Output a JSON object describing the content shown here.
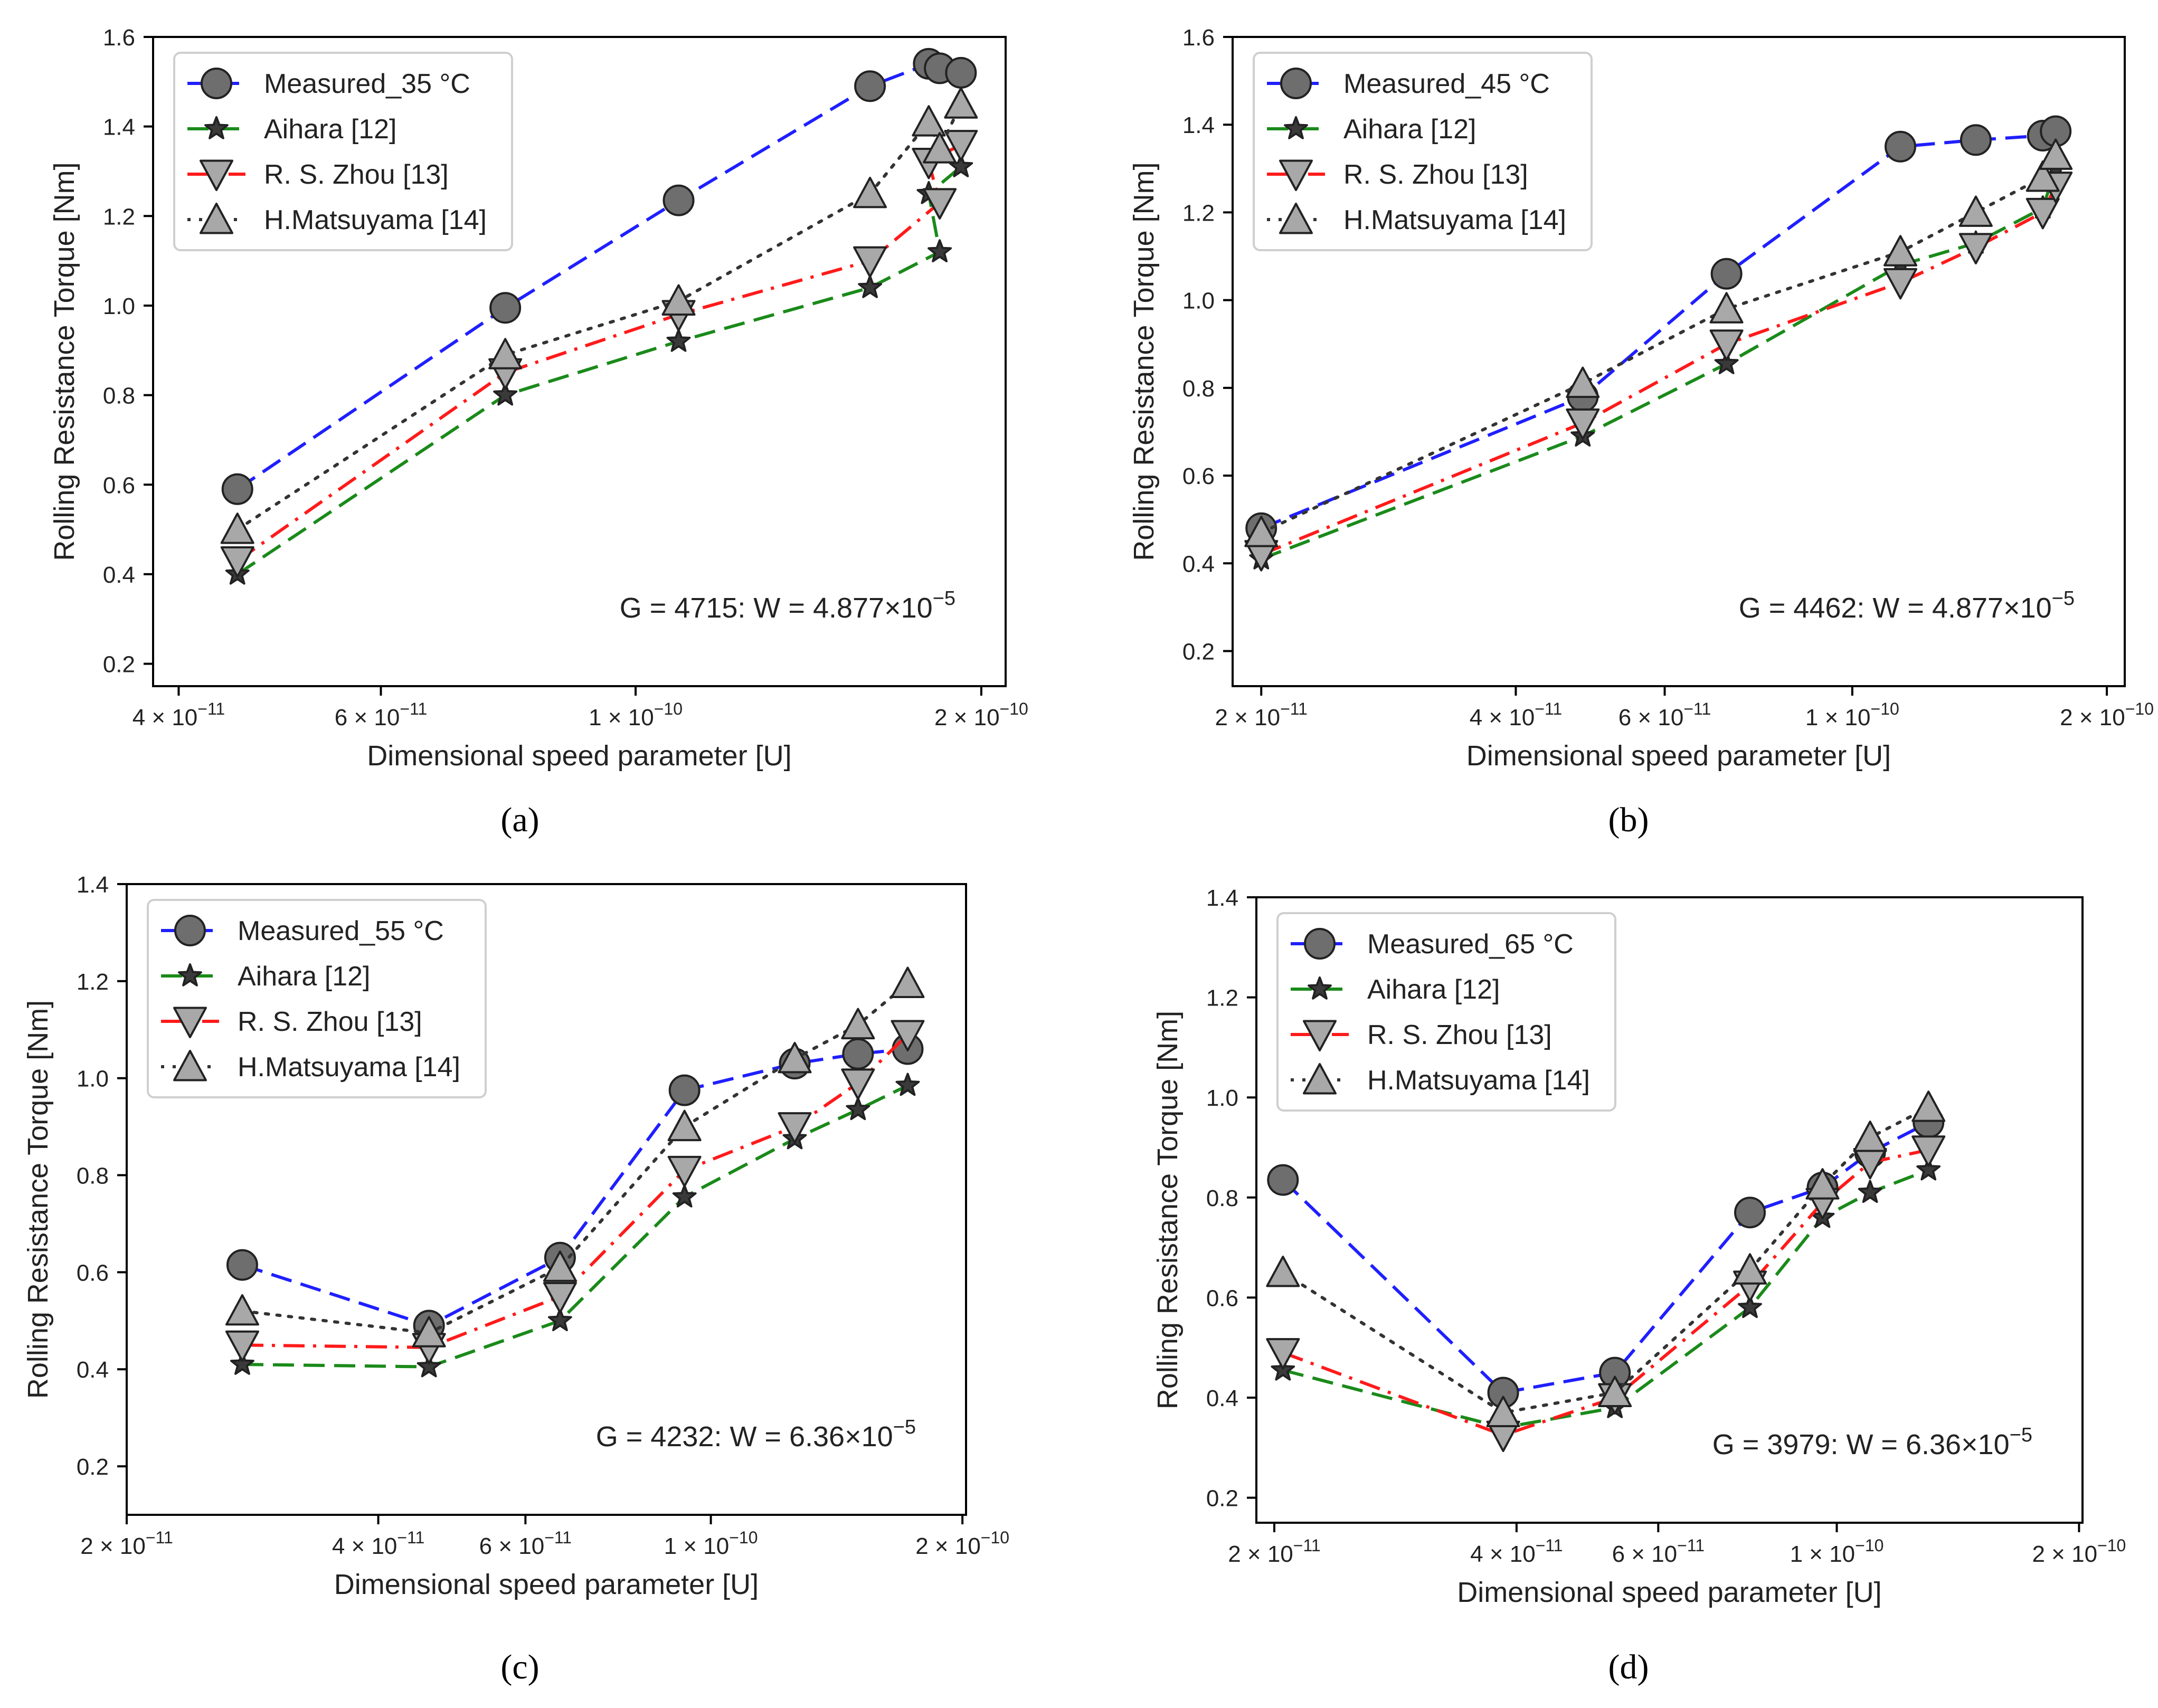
{
  "figure": {
    "panel_captions": [
      "(a)",
      "(b)",
      "(c)",
      "(d)"
    ]
  },
  "series_styles": [
    {
      "name": "Measured",
      "color": "#1f1fff",
      "dash": "dashed",
      "marker": "circle"
    },
    {
      "name": "Aihara [12]",
      "color": "#1a8a1a",
      "dash": "dashed",
      "marker": "star"
    },
    {
      "name": "R. S. Zhou [13]",
      "color": "#ff1a1a",
      "dash": "dashdot",
      "marker": "triangle-down"
    },
    {
      "name": "H.Matsuyama [14]",
      "color": "#333333",
      "dash": "dotted",
      "marker": "triangle-up"
    }
  ],
  "chart_data": [
    {
      "type": "line",
      "panel": "(a)",
      "title": "",
      "xlabel": "Dimensional speed parameter [U]",
      "ylabel": "Rolling Resistance Torque [Nm]",
      "xscale": "log",
      "xlim": [
        3.8e-11,
        2.1e-10
      ],
      "ylim": [
        0.15,
        1.6
      ],
      "yticks": [
        0.2,
        0.4,
        0.6,
        0.8,
        1.0,
        1.2,
        1.4,
        1.6
      ],
      "ytick_labels": [
        "0.2",
        "0.4",
        "0.6",
        "0.8",
        "1.0",
        "1.2",
        "1.4",
        "1.6"
      ],
      "xticks": [
        4e-11,
        6e-11,
        1e-10,
        2e-10
      ],
      "xtick_labels": [
        [
          "4",
          "−11"
        ],
        [
          "6",
          "−11"
        ],
        [
          "1",
          "−10"
        ],
        [
          "2",
          "−10"
        ]
      ],
      "annotation": {
        "text": "G = 4715: W = 4.877×10",
        "exp": "−5"
      },
      "legend": "top-left",
      "series": [
        {
          "name": "Measured_35 °C",
          "x": [
            4.5e-11,
            7.7e-11,
            1.09e-10,
            1.6e-10,
            1.8e-10,
            1.84e-10,
            1.92e-10
          ],
          "values": [
            0.59,
            0.995,
            1.235,
            1.49,
            1.54,
            1.53,
            1.52
          ]
        },
        {
          "name": "Aihara [12]",
          "x": [
            4.5e-11,
            7.7e-11,
            1.09e-10,
            1.6e-10,
            1.84e-10,
            1.8e-10,
            1.92e-10
          ],
          "values": [
            0.4,
            0.8,
            0.92,
            1.04,
            1.12,
            1.25,
            1.31
          ]
        },
        {
          "name": "R. S. Zhou [13]",
          "x": [
            4.5e-11,
            7.7e-11,
            1.09e-10,
            1.6e-10,
            1.84e-10,
            1.8e-10,
            1.92e-10
          ],
          "values": [
            0.43,
            0.85,
            0.98,
            1.1,
            1.23,
            1.32,
            1.36
          ]
        },
        {
          "name": "H.Matsuyama [14]",
          "x": [
            4.5e-11,
            7.7e-11,
            1.09e-10,
            1.6e-10,
            1.8e-10,
            1.84e-10,
            1.92e-10
          ],
          "values": [
            0.5,
            0.89,
            1.01,
            1.25,
            1.41,
            1.35,
            1.45
          ]
        }
      ]
    },
    {
      "type": "line",
      "panel": "(b)",
      "title": "",
      "xlabel": "Dimensional speed parameter [U]",
      "ylabel": "Rolling Resistance Torque [Nm]",
      "xscale": "log",
      "xlim": [
        1.85e-11,
        2.1e-10
      ],
      "ylim": [
        0.12,
        1.6
      ],
      "yticks": [
        0.2,
        0.4,
        0.6,
        0.8,
        1.0,
        1.2,
        1.4,
        1.6
      ],
      "ytick_labels": [
        "0.2",
        "0.4",
        "0.6",
        "0.8",
        "1.0",
        "1.2",
        "1.4",
        "1.6"
      ],
      "xticks": [
        2e-11,
        4e-11,
        6e-11,
        1e-10,
        2e-10
      ],
      "xtick_labels": [
        [
          "2",
          "−11"
        ],
        [
          "4",
          "−11"
        ],
        [
          "6",
          "−11"
        ],
        [
          "1",
          "−10"
        ],
        [
          "2",
          "−10"
        ]
      ],
      "annotation": {
        "text": "G = 4462: W = 4.877×10",
        "exp": "−5"
      },
      "legend": "top-left",
      "series": [
        {
          "name": "Measured_45 °C",
          "x": [
            2e-11,
            4.8e-11,
            7.1e-11,
            1.14e-10,
            1.4e-10,
            1.68e-10,
            1.74e-10
          ],
          "values": [
            0.48,
            0.78,
            1.06,
            1.35,
            1.365,
            1.375,
            1.385
          ]
        },
        {
          "name": "Aihara [12]",
          "x": [
            2e-11,
            4.8e-11,
            7.1e-11,
            1.14e-10,
            1.4e-10,
            1.68e-10,
            1.74e-10
          ],
          "values": [
            0.41,
            0.69,
            0.855,
            1.08,
            1.13,
            1.21,
            1.3
          ]
        },
        {
          "name": "R. S. Zhou [13]",
          "x": [
            2e-11,
            4.8e-11,
            7.1e-11,
            1.14e-10,
            1.4e-10,
            1.68e-10,
            1.74e-10
          ],
          "values": [
            0.42,
            0.72,
            0.9,
            1.04,
            1.12,
            1.2,
            1.26
          ]
        },
        {
          "name": "H.Matsuyama [14]",
          "x": [
            2e-11,
            4.8e-11,
            7.1e-11,
            1.14e-10,
            1.4e-10,
            1.68e-10,
            1.74e-10
          ],
          "values": [
            0.47,
            0.81,
            0.98,
            1.11,
            1.2,
            1.28,
            1.33
          ]
        }
      ]
    },
    {
      "type": "line",
      "panel": "(c)",
      "title": "",
      "xlabel": "Dimensional speed parameter [U]",
      "ylabel": "Rolling Resistance Torque [Nm]",
      "xscale": "log",
      "xlim": [
        2e-11,
        2.02e-10
      ],
      "ylim": [
        0.1,
        1.4
      ],
      "yticks": [
        0.2,
        0.4,
        0.6,
        0.8,
        1.0,
        1.2,
        1.4
      ],
      "ytick_labels": [
        "0.2",
        "0.4",
        "0.6",
        "0.8",
        "1.0",
        "1.2",
        "1.4"
      ],
      "xticks": [
        2e-11,
        4e-11,
        6e-11,
        1e-10,
        2e-10
      ],
      "xtick_labels": [
        [
          "2",
          "−11"
        ],
        [
          "4",
          "−11"
        ],
        [
          "6",
          "−11"
        ],
        [
          "1",
          "−10"
        ],
        [
          "2",
          "−10"
        ]
      ],
      "annotation": {
        "text": "G = 4232: W = 6.36×10",
        "exp": "−5"
      },
      "legend": "top-left",
      "series": [
        {
          "name": "Measured_55 °C",
          "x": [
            2.75e-11,
            4.6e-11,
            6.6e-11,
            9.3e-11,
            1.26e-10,
            1.5e-10,
            1.72e-10
          ],
          "values": [
            0.615,
            0.49,
            0.63,
            0.975,
            1.03,
            1.05,
            1.06
          ]
        },
        {
          "name": "Aihara [12]",
          "x": [
            2.75e-11,
            4.6e-11,
            6.6e-11,
            9.3e-11,
            1.26e-10,
            1.5e-10,
            1.72e-10
          ],
          "values": [
            0.41,
            0.405,
            0.5,
            0.755,
            0.875,
            0.935,
            0.985
          ]
        },
        {
          "name": "R. S. Zhou [13]",
          "x": [
            2.75e-11,
            4.6e-11,
            6.6e-11,
            9.3e-11,
            1.26e-10,
            1.5e-10,
            1.72e-10
          ],
          "values": [
            0.45,
            0.445,
            0.55,
            0.81,
            0.9,
            0.99,
            1.09
          ]
        },
        {
          "name": "H.Matsuyama [14]",
          "x": [
            2.75e-11,
            4.6e-11,
            6.6e-11,
            9.3e-11,
            1.26e-10,
            1.5e-10,
            1.72e-10
          ],
          "values": [
            0.52,
            0.475,
            0.61,
            0.9,
            1.04,
            1.11,
            1.195
          ]
        }
      ]
    },
    {
      "type": "line",
      "panel": "(d)",
      "title": "",
      "xlabel": "Dimensional speed parameter [U]",
      "ylabel": "Rolling Resistance Torque [Nm]",
      "xscale": "log",
      "xlim": [
        1.9e-11,
        2.02e-10
      ],
      "ylim": [
        0.15,
        1.4
      ],
      "yticks": [
        0.2,
        0.4,
        0.6,
        0.8,
        1.0,
        1.2,
        1.4
      ],
      "ytick_labels": [
        "0.2",
        "0.4",
        "0.6",
        "0.8",
        "1.0",
        "1.2",
        "1.4"
      ],
      "xticks": [
        2e-11,
        4e-11,
        6e-11,
        1e-10,
        2e-10
      ],
      "xtick_labels": [
        [
          "2",
          "−11"
        ],
        [
          "4",
          "−11"
        ],
        [
          "6",
          "−11"
        ],
        [
          "1",
          "−10"
        ],
        [
          "2",
          "−10"
        ]
      ],
      "annotation": {
        "text": "G = 3979: W = 6.36×10",
        "exp": "−5"
      },
      "legend": "top-left",
      "series": [
        {
          "name": "Measured_65 °C",
          "x": [
            2.05e-11,
            3.85e-11,
            5.3e-11,
            7.8e-11,
            9.6e-11,
            1.1e-10,
            1.3e-10
          ],
          "values": [
            0.835,
            0.41,
            0.45,
            0.77,
            0.82,
            0.89,
            0.95
          ]
        },
        {
          "name": "Aihara [12]",
          "x": [
            2.05e-11,
            3.85e-11,
            5.3e-11,
            7.8e-11,
            9.6e-11,
            1.1e-10,
            1.3e-10
          ],
          "values": [
            0.455,
            0.34,
            0.38,
            0.58,
            0.76,
            0.81,
            0.855
          ]
        },
        {
          "name": "R. S. Zhou [13]",
          "x": [
            2.05e-11,
            3.85e-11,
            5.3e-11,
            7.8e-11,
            9.6e-11,
            1.1e-10,
            1.3e-10
          ],
          "values": [
            0.49,
            0.325,
            0.4,
            0.625,
            0.79,
            0.87,
            0.895
          ]
        },
        {
          "name": "H.Matsuyama [14]",
          "x": [
            2.05e-11,
            3.85e-11,
            5.3e-11,
            7.8e-11,
            9.6e-11,
            1.1e-10,
            1.3e-10
          ],
          "values": [
            0.65,
            0.37,
            0.41,
            0.655,
            0.825,
            0.92,
            0.98
          ]
        }
      ]
    }
  ]
}
